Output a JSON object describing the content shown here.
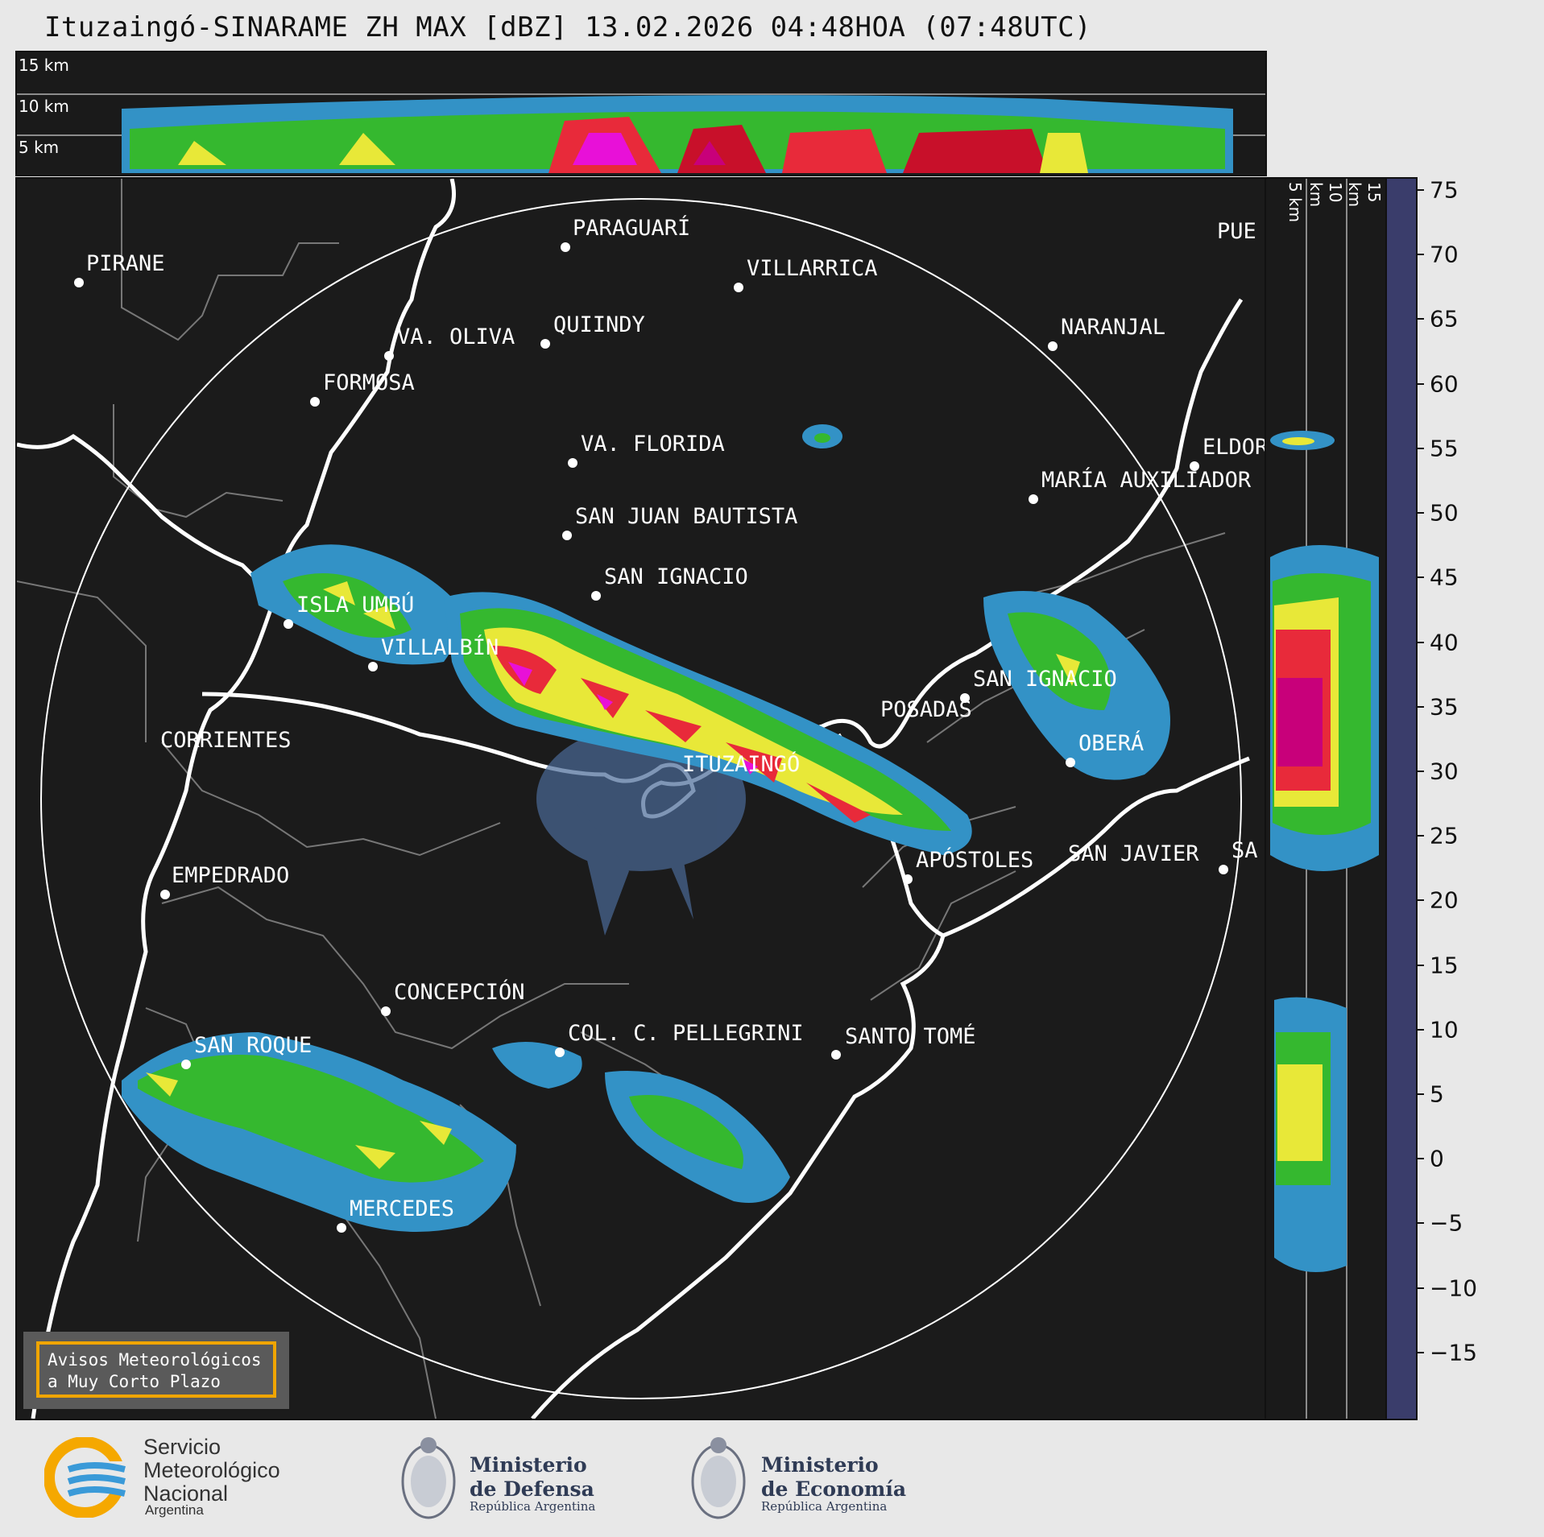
{
  "title": "Ituzaingó-SINARAME ZH MAX [dBZ] 13.02.2026 04:48HOA (07:48UTC)",
  "altitude_labels": [
    "15 km",
    "10 km",
    "5 km"
  ],
  "cities": [
    {
      "name": "PIRANE"
    },
    {
      "name": "PARAGUARÍ"
    },
    {
      "name": "VILLARRICA"
    },
    {
      "name": "QUIINDY"
    },
    {
      "name": "VA. OLIVA"
    },
    {
      "name": "FORMOSA"
    },
    {
      "name": "NARANJAL"
    },
    {
      "name": "VA. FLORIDA"
    },
    {
      "name": "ELDOR"
    },
    {
      "name": "MARÍA AUXILIADOR"
    },
    {
      "name": "SAN JUAN BAUTISTA"
    },
    {
      "name": "SAN IGNACIO"
    },
    {
      "name": "ISLA UMBÚ"
    },
    {
      "name": "VILLALBÍN"
    },
    {
      "name": "SAN IGNACIO"
    },
    {
      "name": "POSADAS"
    },
    {
      "name": "CORRIENTES"
    },
    {
      "name": "ITUZAINGÓ"
    },
    {
      "name": "OBERÁ"
    },
    {
      "name": "APÓSTOLES"
    },
    {
      "name": "SAN JAVIER"
    },
    {
      "name": "SA"
    },
    {
      "name": "EMPEDRADO"
    },
    {
      "name": "CONCEPCIÓN"
    },
    {
      "name": "COL. C. PELLEGRINI"
    },
    {
      "name": "SANTO TOMÉ"
    },
    {
      "name": "SAN ROQUE"
    },
    {
      "name": "MERCEDES"
    },
    {
      "name": "PUE"
    }
  ],
  "colorbar": {
    "ticks": [
      "75",
      "70",
      "65",
      "60",
      "55",
      "50",
      "45",
      "40",
      "35",
      "30",
      "25",
      "20",
      "15",
      "10",
      "5",
      "0",
      "−5",
      "−10",
      "−15"
    ],
    "range": [
      -20,
      76
    ],
    "colors": [
      {
        "min": -20,
        "color": "#3a3d6b"
      },
      {
        "min": -15,
        "color": "#3f4a7a"
      },
      {
        "min": -10,
        "color": "#465a8a"
      },
      {
        "min": -5,
        "color": "#4a6a98"
      },
      {
        "min": 0,
        "color": "#4a7aa8"
      },
      {
        "min": 5,
        "color": "#3f86b8"
      },
      {
        "min": 10,
        "color": "#3392c6"
      },
      {
        "min": 15,
        "color": "#28a6d8"
      },
      {
        "min": 18,
        "color": "#3ed83a"
      },
      {
        "min": 22,
        "color": "#35b82f"
      },
      {
        "min": 26,
        "color": "#2a9626"
      },
      {
        "min": 30,
        "color": "#e8e838"
      },
      {
        "min": 33,
        "color": "#d8d030"
      },
      {
        "min": 37,
        "color": "#c8a828"
      },
      {
        "min": 40,
        "color": "#e08a20"
      },
      {
        "min": 42,
        "color": "#e82a3a"
      },
      {
        "min": 45,
        "color": "#c8102a"
      },
      {
        "min": 48,
        "color": "#a80818"
      },
      {
        "min": 50,
        "color": "#c8007a"
      },
      {
        "min": 53,
        "color": "#e810d8"
      },
      {
        "min": 56,
        "color": "#a01098"
      },
      {
        "min": 58,
        "color": "#ffffff"
      },
      {
        "min": 62,
        "color": "#d8f0e8"
      },
      {
        "min": 66,
        "color": "#b0e8d0"
      },
      {
        "min": 70,
        "color": "#90dcc0"
      }
    ]
  },
  "warning": {
    "line1": "Avisos Meteorológicos",
    "line2": "a Muy Corto Plazo"
  },
  "logos": {
    "smn": [
      "Servicio",
      "Meteorológico",
      "Nacional",
      "Argentina"
    ],
    "defensa": [
      "Ministerio",
      "de Defensa",
      "República Argentina"
    ],
    "economia": [
      "Ministerio",
      "de Economía",
      "República Argentina"
    ]
  }
}
